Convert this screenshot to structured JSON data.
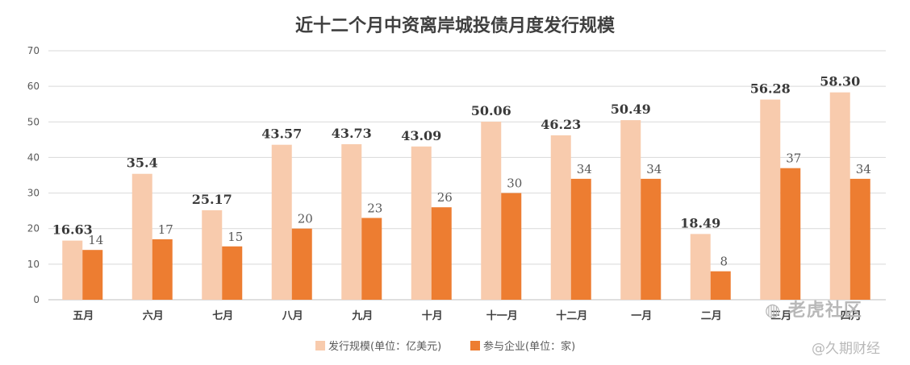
{
  "chart_data": {
    "type": "bar",
    "title": "近十二个月中资离岸城投债月度发行规模",
    "categories": [
      "五月",
      "六月",
      "七月",
      "八月",
      "九月",
      "十月",
      "十一月",
      "十二月",
      "一月",
      "二月",
      "三月",
      "四月"
    ],
    "series": [
      {
        "name": "发行规模(单位：亿美元)",
        "color": "#F8CBAD",
        "values": [
          16.63,
          35.4,
          25.17,
          43.57,
          43.73,
          43.09,
          50.06,
          46.23,
          50.49,
          18.49,
          56.28,
          58.3
        ],
        "labels": [
          "16.63",
          "35.4",
          "25.17",
          "43.57",
          "43.73",
          "43.09",
          "50.06",
          "46.23",
          "50.49",
          "18.49",
          "56.28",
          "58.30"
        ]
      },
      {
        "name": "参与企业(单位：家)",
        "color": "#ED7D31",
        "values": [
          14,
          17,
          15,
          20,
          23,
          26,
          30,
          34,
          34,
          8,
          37,
          34
        ],
        "labels": [
          "14",
          "17",
          "15",
          "20",
          "23",
          "26",
          "30",
          "34",
          "34",
          "8",
          "37",
          "34"
        ]
      }
    ],
    "ylim": [
      0,
      70
    ],
    "yticks": [
      0,
      10,
      20,
      30,
      40,
      50,
      60,
      70
    ],
    "grid": true,
    "legend": "bottom"
  },
  "watermarks": {
    "laohu": "老虎社区",
    "author": "@久期财经"
  }
}
